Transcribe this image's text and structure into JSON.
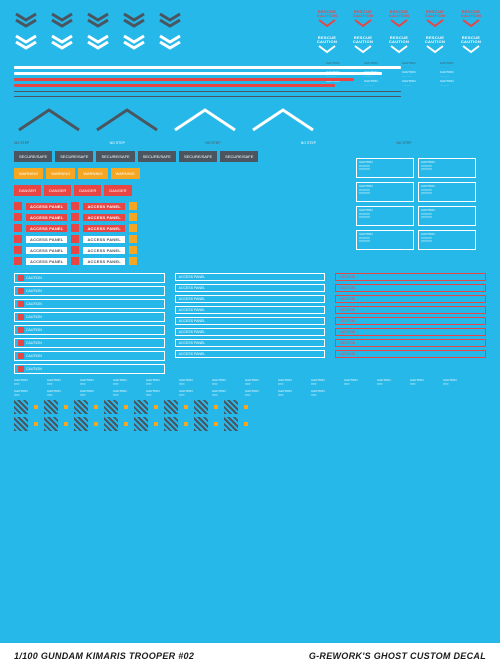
{
  "title_left": "1/100 GUNDAM KIMARIS TROOPER #02",
  "title_right": "G-REWORK'S GHOST CUSTOM DECAL",
  "colors": {
    "bg": "#26b8e8",
    "gray": "#4a5560",
    "white": "#ffffff",
    "red": "#e84545",
    "orange": "#f5a623"
  },
  "chevrons": {
    "row1_color": "#4a5560",
    "row2_color": "#ffffff",
    "count": 5
  },
  "caution_v": {
    "rows": [
      {
        "color": "#e84545",
        "count": 5,
        "label": "RESCUE\nCAUTION"
      },
      {
        "color": "#ffffff",
        "count": 5,
        "label": "RESCUE\nCAUTION"
      }
    ]
  },
  "lines": [
    {
      "color": "#ffffff",
      "w": "82%"
    },
    {
      "color": "#ffffff",
      "w": "78%"
    },
    {
      "color": "#e84545",
      "w": "72%"
    },
    {
      "color": "#e84545",
      "w": "68%"
    },
    {
      "color": "#4a5560",
      "w": "82%",
      "thin": true
    },
    {
      "color": "#4a5560",
      "w": "82%",
      "thin": true
    }
  ],
  "angles": [
    {
      "color": "#4a5560"
    },
    {
      "color": "#4a5560"
    },
    {
      "color": "#ffffff"
    },
    {
      "color": "#ffffff"
    }
  ],
  "caution_labels": [
    "CAUTION",
    "CAUTION",
    "CAUTION",
    "CAUTION",
    "CAUTION",
    "CAUTION",
    "CAUTION",
    "CAUTION",
    "CAUTION",
    "CAUTION",
    "CAUTION",
    "CAUTION"
  ],
  "caution_box_label": "CAUTION",
  "boxes_dark": [
    "SECURE/SAFE",
    "SECURE/SAFE",
    "SECURE/SAFE",
    "SECURE/SAFE",
    "SECURE/SAFE",
    "SECURE/SAFE"
  ],
  "boxes_orange": [
    "WARNING",
    "WARNING",
    "WARNING",
    "WARNING"
  ],
  "boxes_red": [
    "DANGER",
    "DANGER",
    "DANGER",
    "DANGER"
  ],
  "access_panels_red": [
    "ACCESS PANEL",
    "ACCESS PANEL",
    "ACCESS PANEL",
    "ACCESS PANEL",
    "ACCESS PANEL",
    "ACCESS PANEL"
  ],
  "access_panels_white": [
    "ACCESS PANEL",
    "ACCESS PANEL",
    "ACCESS PANEL",
    "ACCESS PANEL",
    "ACCESS PANEL",
    "ACCESS PANEL",
    "ACCESS PANEL",
    "ACCESS PANEL"
  ],
  "caution_tags": [
    "CAUTION",
    "CAUTION",
    "CAUTION",
    "CAUTION",
    "CAUTION",
    "CAUTION",
    "CAUTION",
    "CAUTION"
  ],
  "step_tags": [
    "NO STEP",
    "NO STEP",
    "NO STEP",
    "NO STEP",
    "NO STEP",
    "NO STEP"
  ],
  "micro_caution": "CAUTION"
}
